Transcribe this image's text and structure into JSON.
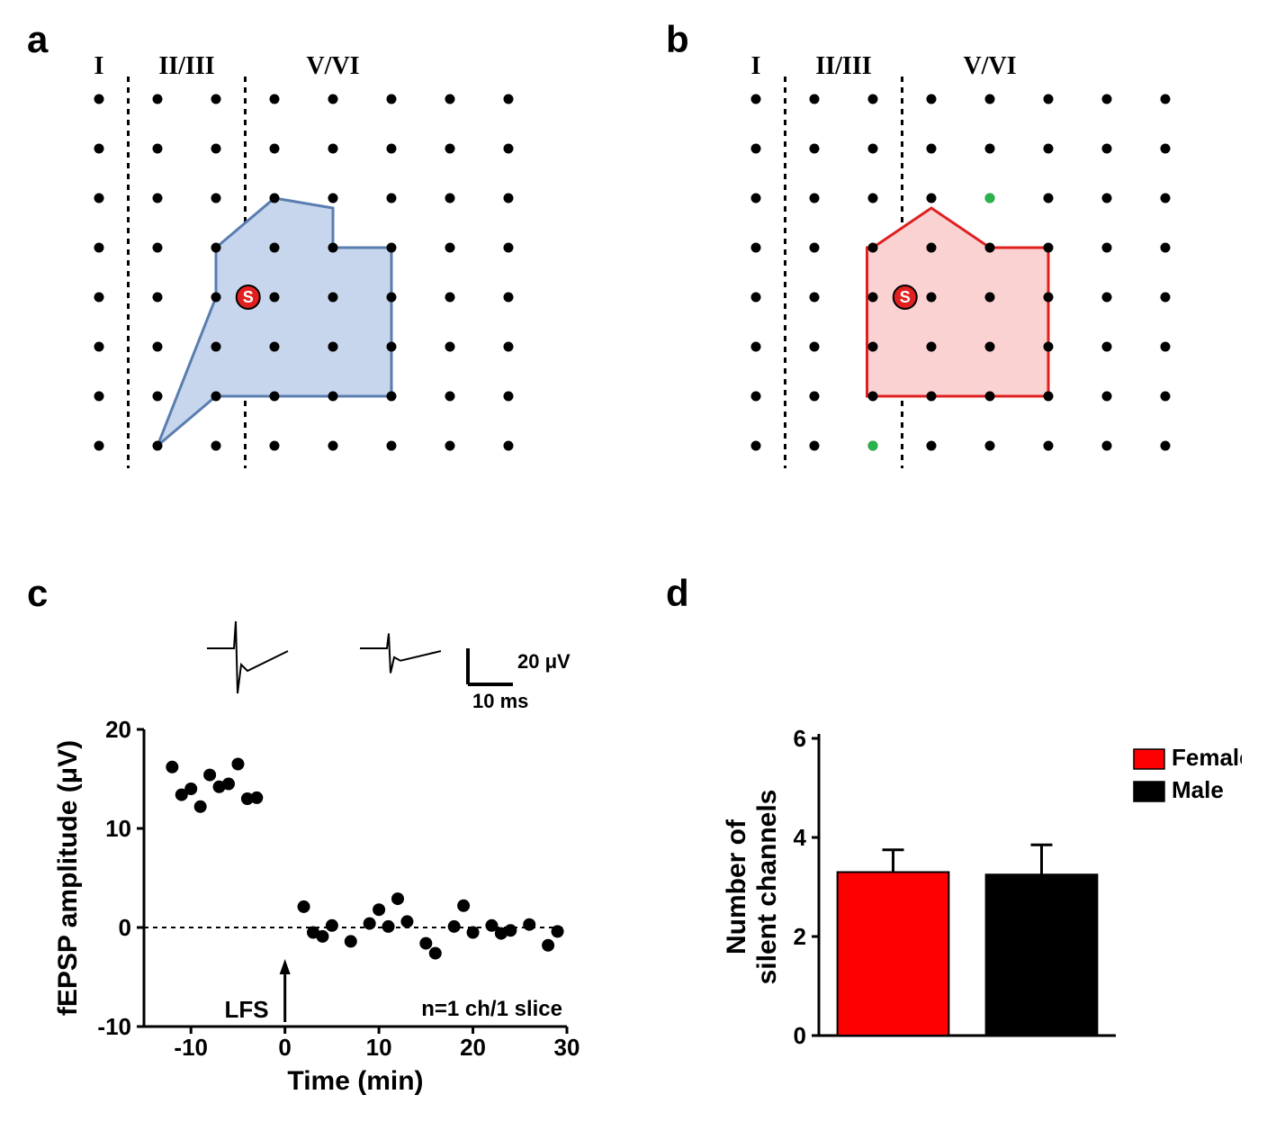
{
  "panel_labels": {
    "a": "a",
    "b": "b",
    "c": "c",
    "d": "d"
  },
  "layers": {
    "I": "I",
    "II_III": "II/III",
    "V_VI": "V/VI"
  },
  "stim_label": "S",
  "panel_a": {
    "type": "grid_map",
    "polygon_fill": "#c7d6ec",
    "polygon_stroke": "#5a7db0",
    "stim_fill": "#e02020",
    "grid_rows": 8,
    "grid_cols": 8,
    "dot_r": 5.5,
    "dot_fill": "#000000",
    "dash": "6,6"
  },
  "panel_b": {
    "type": "grid_map",
    "polygon_fill": "#fbd2d2",
    "polygon_stroke": "#e02020",
    "stim_fill": "#e02020",
    "grid_rows": 8,
    "grid_cols": 8,
    "dot_r": 5.5,
    "dot_fill": "#000000",
    "green_fill": "#2bb24c",
    "dash": "6,6"
  },
  "panel_c": {
    "type": "scatter",
    "xlabel": "Time (min)",
    "ylabel": "fEPSP amplitude (μV)",
    "xlim": [
      -15,
      30
    ],
    "ylim": [
      -10,
      20
    ],
    "xticks": [
      -10,
      0,
      10,
      20,
      30
    ],
    "yticks": [
      -10,
      0,
      10,
      20
    ],
    "lfs_label": "LFS",
    "n_label": "n=1 ch/1 slice",
    "scale_v": "20 μV",
    "scale_h": "10 ms",
    "points": [
      [
        -12,
        16.2
      ],
      [
        -11,
        13.4
      ],
      [
        -10,
        14.0
      ],
      [
        -9,
        12.2
      ],
      [
        -8,
        15.4
      ],
      [
        -7,
        14.2
      ],
      [
        -6,
        14.5
      ],
      [
        -5,
        16.5
      ],
      [
        -4,
        13.0
      ],
      [
        -3,
        13.1
      ],
      [
        2,
        2.1
      ],
      [
        3,
        -0.5
      ],
      [
        4,
        -0.9
      ],
      [
        5,
        0.2
      ],
      [
        7,
        -1.4
      ],
      [
        9,
        0.4
      ],
      [
        10,
        1.8
      ],
      [
        11,
        0.1
      ],
      [
        12,
        2.9
      ],
      [
        13,
        0.6
      ],
      [
        15,
        -1.6
      ],
      [
        16,
        -2.6
      ],
      [
        18,
        0.1
      ],
      [
        19,
        2.2
      ],
      [
        20,
        -0.5
      ],
      [
        22,
        0.2
      ],
      [
        23,
        -0.6
      ],
      [
        24,
        -0.3
      ],
      [
        26,
        0.3
      ],
      [
        28,
        -1.8
      ],
      [
        29,
        -0.4
      ]
    ],
    "marker_r": 7,
    "marker_fill": "#000000",
    "axis_color": "#000000",
    "label_fontsize": 30,
    "tick_fontsize": 26
  },
  "panel_d": {
    "type": "bar",
    "ylabel_l1": "Number of",
    "ylabel_l2": "silent channels",
    "ylim": [
      0,
      6
    ],
    "yticks": [
      0,
      2,
      4,
      6
    ],
    "bars": [
      {
        "label": "Female",
        "value": 3.3,
        "err": 0.45,
        "fill": "#ff0000"
      },
      {
        "label": "Male",
        "value": 3.25,
        "err": 0.6,
        "fill": "#000000"
      }
    ],
    "bar_width": 0.75,
    "axis_color": "#000000",
    "label_fontsize": 30,
    "tick_fontsize": 26
  }
}
